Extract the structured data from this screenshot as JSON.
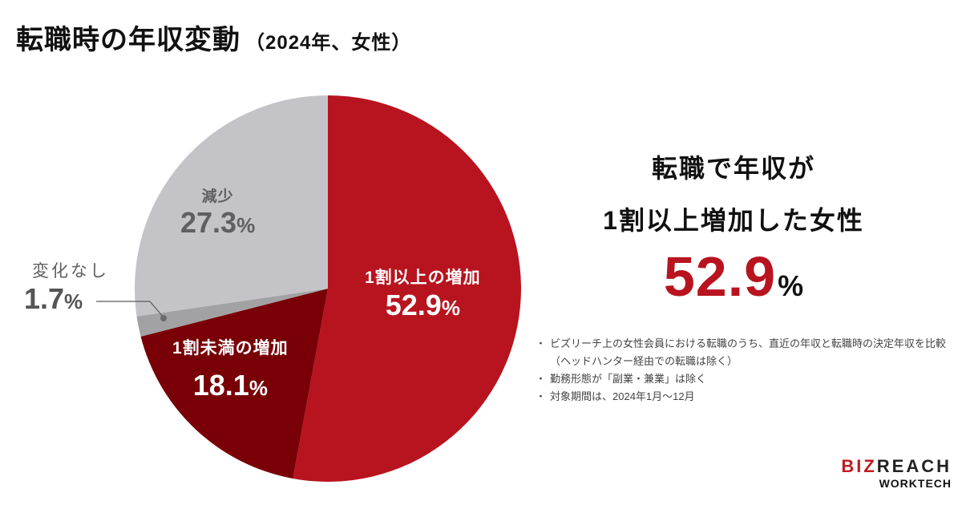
{
  "title": {
    "main": "転職時の年収変動",
    "sub": "（2024年、女性）"
  },
  "chart_data": {
    "type": "pie",
    "title": "転職時の年収変動（2024年、女性）",
    "start_angle": "12 o'clock, clockwise",
    "categories": [
      "1割以上の増加",
      "1割未満の増加",
      "変化なし",
      "減少"
    ],
    "values": [
      52.9,
      18.1,
      1.7,
      27.3
    ],
    "unit": "%",
    "colors": [
      "#b8141f",
      "#780006",
      "#a2a2a5",
      "#c4c4c8"
    ],
    "legend": "none (direct labels)"
  },
  "labels": {
    "big": {
      "name": "1割以上の増加",
      "value": "52.9",
      "pct": "%"
    },
    "small": {
      "name": "1割未満の増加",
      "value": "18.1",
      "pct": "%"
    },
    "nochange": {
      "name": "変化なし",
      "value": "1.7",
      "pct": "%"
    },
    "decrease": {
      "name": "減少",
      "value": "27.3",
      "pct": "%"
    }
  },
  "headline": {
    "line1": "転職で年収が",
    "line2": "1割以上増加した女性",
    "value": "52.9",
    "pct": "%"
  },
  "notes": [
    "ビズリーチ上の女性会員における転職のうち、直近の年収と転職時の決定年収を比較（ヘッドハンター経由での転職は除く）",
    "勤務形態が「副業・兼業」は除く",
    "対象期間は、2024年1月～12月"
  ],
  "logo": {
    "brand_red": "BIZ",
    "brand_dark": "REACH",
    "sub": "WORKTECH"
  }
}
